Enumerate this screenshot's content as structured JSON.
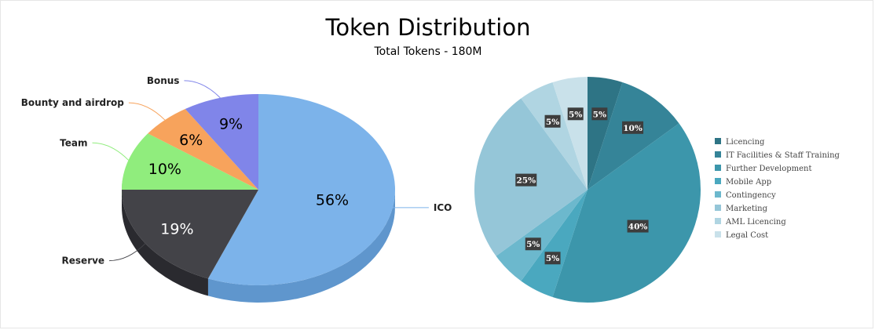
{
  "header": {
    "title": "Token Distribution",
    "subtitle": "Total Tokens - 180M"
  },
  "chart_data": [
    {
      "type": "pie",
      "style": "3d",
      "title": "",
      "slices": [
        {
          "name": "ICO",
          "value": 56,
          "label": "56%",
          "color": "#7cb3ea",
          "side": "#5f96cd",
          "text_color": "#000000"
        },
        {
          "name": "Reserve",
          "value": 19,
          "label": "19%",
          "color": "#434348",
          "side": "#2a2a2f",
          "text_color": "#ffffff"
        },
        {
          "name": "Team",
          "value": 10,
          "label": "10%",
          "color": "#90ed7d",
          "side": "#6cc95a",
          "text_color": "#000000"
        },
        {
          "name": "Bounty and airdrop",
          "value": 6,
          "label": "6%",
          "color": "#f7a35c",
          "side": "#d6843f",
          "text_color": "#000000"
        },
        {
          "name": "Bonus",
          "value": 9,
          "label": "9%",
          "color": "#8085e9",
          "side": "#6166c9",
          "text_color": "#000000"
        }
      ],
      "legend": "none"
    },
    {
      "type": "pie",
      "title": "",
      "slices": [
        {
          "name": "Licencing",
          "value": 5,
          "label": "5%",
          "color": "#2e7485"
        },
        {
          "name": "IT Facilities & Staff Training",
          "value": 10,
          "label": "10%",
          "color": "#358498"
        },
        {
          "name": "Further Development",
          "value": 40,
          "label": "40%",
          "color": "#3c96ab"
        },
        {
          "name": "Mobile App",
          "value": 5,
          "label": "5%",
          "color": "#4aa8bf"
        },
        {
          "name": "Contingency",
          "value": 5,
          "label": "5%",
          "color": "#6cb8cd"
        },
        {
          "name": "Marketing",
          "value": 25,
          "label": "25%",
          "color": "#95c6d8"
        },
        {
          "name": "AML Licencing",
          "value": 5,
          "label": "5%",
          "color": "#b0d5e2"
        },
        {
          "name": "Legal Cost",
          "value": 5,
          "label": "5%",
          "color": "#c9e1ea"
        }
      ],
      "legend": "right"
    }
  ]
}
